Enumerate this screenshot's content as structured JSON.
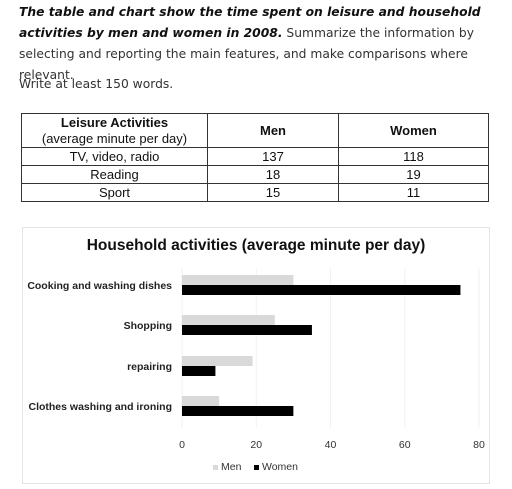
{
  "prompt": {
    "lead": "The table and chart show the time spent on leisure and household activities by men and women in 2008.",
    "rest": " Summarize the information by selecting and reporting the main features, and make comparisons where relevant.",
    "instruction": "Write at least 150 words."
  },
  "table": {
    "headers": {
      "activity": "Leisure Activities",
      "activity_sub": "(average minute per day)",
      "men": "Men",
      "women": "Women"
    },
    "rows": [
      {
        "activity": "TV, video, radio",
        "men": "137",
        "women": "118"
      },
      {
        "activity": "Reading",
        "men": "18",
        "women": "19"
      },
      {
        "activity": "Sport",
        "men": "15",
        "women": "11"
      }
    ]
  },
  "chart_data": {
    "type": "bar",
    "orientation": "horizontal",
    "title": "Household activities (average minute per day)",
    "categories": [
      "Cooking and washing dishes",
      "Shopping",
      "repairing",
      "Clothes washing and ironing"
    ],
    "series": [
      {
        "name": "Men",
        "values": [
          30,
          25,
          19,
          10
        ],
        "color": "#d9d9d9"
      },
      {
        "name": "Women",
        "values": [
          75,
          35,
          9,
          30
        ],
        "color": "#000000"
      }
    ],
    "xlim": [
      0,
      80
    ],
    "xticks": [
      "0",
      "20",
      "40",
      "60",
      "80"
    ],
    "legend_position": "bottom"
  }
}
